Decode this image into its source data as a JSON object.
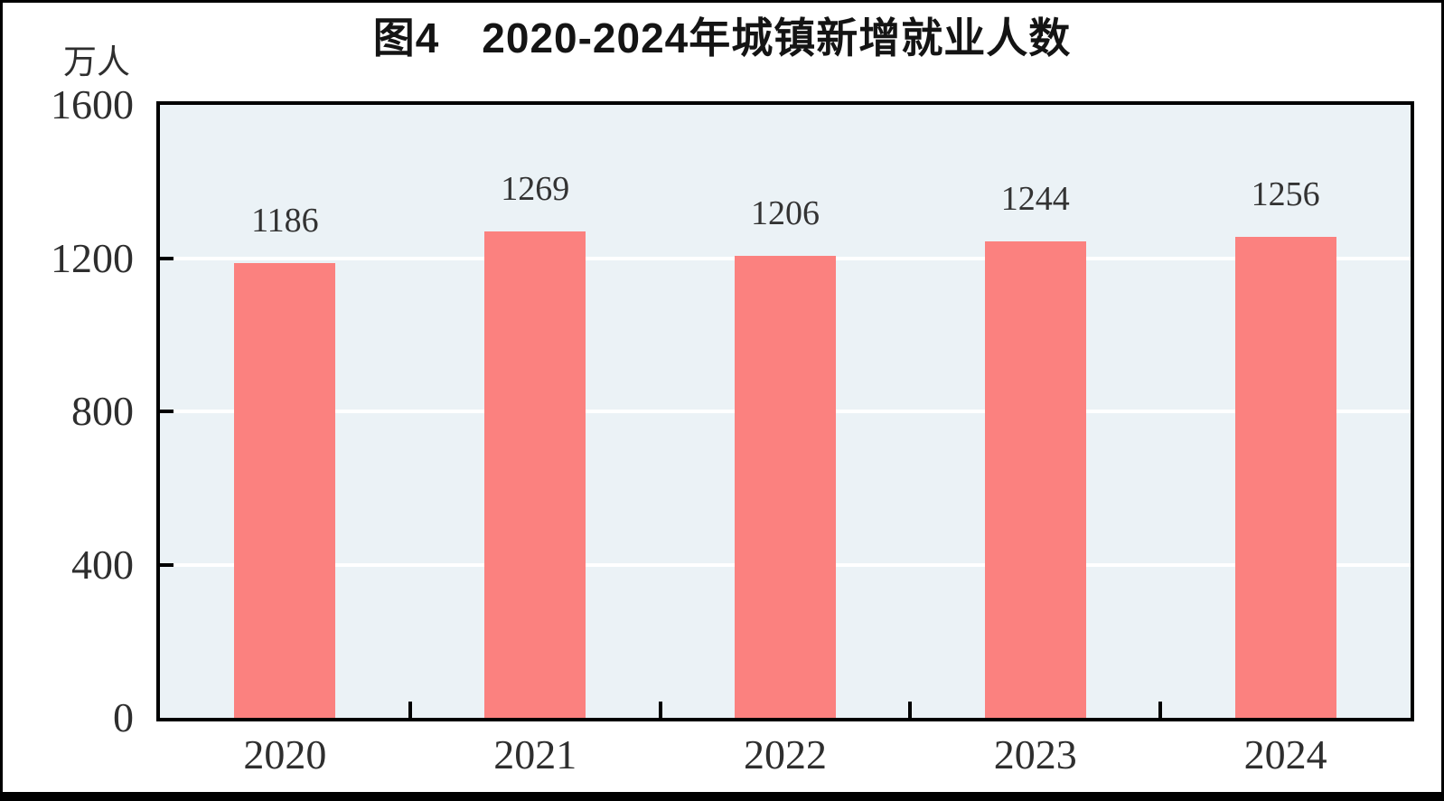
{
  "figure": {
    "title": "图4　2020-2024年城镇新增就业人数",
    "unit_label": "万人"
  },
  "chart_data": {
    "type": "bar",
    "title": "图4　2020-2024年城镇新增就业人数",
    "categories": [
      "2020",
      "2021",
      "2022",
      "2023",
      "2024"
    ],
    "values": [
      1186,
      1269,
      1206,
      1244,
      1256
    ],
    "xlabel": "",
    "ylabel": "万人",
    "ylim": [
      0,
      1600
    ],
    "yticks": [
      0,
      400,
      800,
      1200,
      1600
    ],
    "gridline_values": [
      400,
      800,
      1200
    ],
    "grid": "horizontal",
    "legend": "none",
    "data_labels_shown": true,
    "colors": {
      "bar": "#FB817F",
      "plot_background": "#EBF2F6",
      "gridline": "#FFFFFF",
      "axis_frame": "#000000",
      "text": "#2E2E2E",
      "data_label_text": "#333333",
      "outer_frame": "#000000"
    }
  }
}
